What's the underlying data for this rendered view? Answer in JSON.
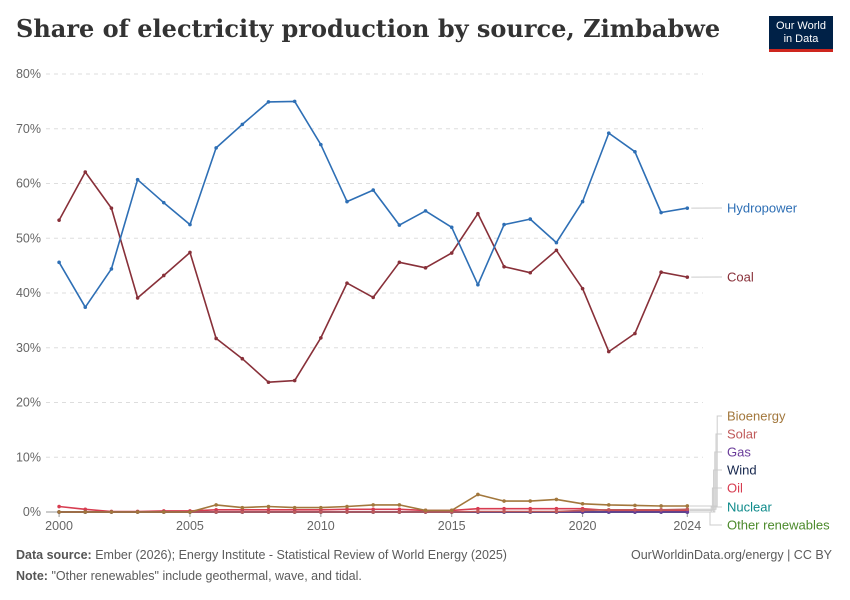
{
  "title": "Share of electricity production by source, Zimbabwe",
  "logo": {
    "line1": "Our World",
    "line2": "in Data"
  },
  "footer": {
    "source_label": "Data source:",
    "source_text": "Ember (2026); Energy Institute - Statistical Review of World Energy (2025)",
    "note_label": "Note:",
    "note_text": "\"Other renewables\" include geothermal, wave, and tidal.",
    "right_text": "OurWorldinData.org/energy | CC BY"
  },
  "chart_data": {
    "type": "line",
    "title": "Share of electricity production by source, Zimbabwe",
    "xlabel": "",
    "ylabel": "",
    "xlim": [
      2000,
      2024
    ],
    "ylim": [
      0,
      80
    ],
    "y_ticks": [
      0,
      10,
      20,
      30,
      40,
      50,
      60,
      70,
      80
    ],
    "y_tick_labels": [
      "0%",
      "10%",
      "20%",
      "30%",
      "40%",
      "50%",
      "60%",
      "70%",
      "80%"
    ],
    "x_ticks": [
      2000,
      2005,
      2010,
      2015,
      2020,
      2024
    ],
    "x_tick_labels": [
      "2000",
      "2005",
      "2010",
      "2015",
      "2020",
      "2024"
    ],
    "grid": "horizontal dashed",
    "legend": "right, labels at line ends",
    "x": [
      2000,
      2001,
      2002,
      2003,
      2004,
      2005,
      2006,
      2007,
      2008,
      2009,
      2010,
      2011,
      2012,
      2013,
      2014,
      2015,
      2016,
      2017,
      2018,
      2019,
      2020,
      2021,
      2022,
      2023,
      2024
    ],
    "series": [
      {
        "name": "Hydropower",
        "color": "#2e6fb5",
        "values": [
          45.6,
          37.4,
          44.4,
          60.7,
          56.5,
          52.5,
          66.5,
          70.8,
          74.9,
          75.0,
          67.1,
          56.7,
          58.8,
          52.4,
          55.0,
          52.0,
          41.5,
          52.5,
          53.5,
          49.2,
          56.7,
          69.2,
          65.8,
          54.7,
          55.5
        ]
      },
      {
        "name": "Coal",
        "color": "#883039",
        "values": [
          53.3,
          62.1,
          55.5,
          39.1,
          43.2,
          47.4,
          31.7,
          28.0,
          23.7,
          24.0,
          31.8,
          41.8,
          39.2,
          45.6,
          44.6,
          47.3,
          54.5,
          44.8,
          43.7,
          47.8,
          40.8,
          29.3,
          32.6,
          43.8,
          42.9
        ]
      },
      {
        "name": "Bioenergy",
        "color": "#a2773c",
        "values": [
          0,
          0,
          0,
          0,
          0,
          0,
          1.3,
          0.8,
          1.0,
          0.8,
          0.8,
          1.0,
          1.3,
          1.3,
          0.3,
          0.3,
          3.2,
          2.0,
          2.0,
          2.3,
          1.5,
          1.3,
          1.2,
          1.1,
          1.1
        ]
      },
      {
        "name": "Solar",
        "color": "#c05a5a",
        "values": [
          0,
          0,
          0,
          0,
          0,
          0,
          0,
          0,
          0,
          0,
          0,
          0,
          0,
          0,
          0,
          0,
          0.1,
          0.1,
          0.1,
          0.1,
          0.3,
          0.4,
          0.4,
          0.4,
          0.5
        ]
      },
      {
        "name": "Gas",
        "color": "#6a3d9a",
        "values": [
          0,
          0,
          0,
          0,
          0,
          0,
          0,
          0,
          0,
          0,
          0,
          0,
          0,
          0,
          0,
          0,
          0,
          0,
          0,
          0,
          0,
          0,
          0,
          0,
          0
        ]
      },
      {
        "name": "Wind",
        "color": "#15264d",
        "values": [
          0,
          0,
          0,
          0,
          0,
          0,
          0,
          0,
          0,
          0,
          0,
          0,
          0,
          0,
          0,
          0,
          0,
          0,
          0,
          0,
          0,
          0,
          0,
          0,
          0
        ]
      },
      {
        "name": "Oil",
        "color": "#d73c50",
        "values": [
          1.0,
          0.5,
          0.1,
          0.1,
          0.2,
          0.2,
          0.4,
          0.4,
          0.4,
          0.4,
          0.4,
          0.5,
          0.5,
          0.5,
          0.3,
          0.3,
          0.6,
          0.6,
          0.6,
          0.6,
          0.6,
          0.3,
          0.3,
          0.3,
          0.3
        ]
      },
      {
        "name": "Nuclear",
        "color": "#0d8a8a",
        "values": [
          0,
          0,
          0,
          0,
          0,
          0,
          0,
          0,
          0,
          0,
          0,
          0,
          0,
          0,
          0,
          0,
          0,
          0,
          0,
          0,
          0,
          0,
          0,
          0,
          0
        ]
      },
      {
        "name": "Other renewables",
        "color": "#4c8a2c",
        "values": [
          0,
          0,
          0,
          0,
          0,
          0,
          0,
          0,
          0,
          0,
          0,
          0,
          0,
          0,
          0,
          0,
          0,
          0,
          0,
          0,
          0,
          0,
          0,
          0,
          0
        ]
      }
    ]
  }
}
